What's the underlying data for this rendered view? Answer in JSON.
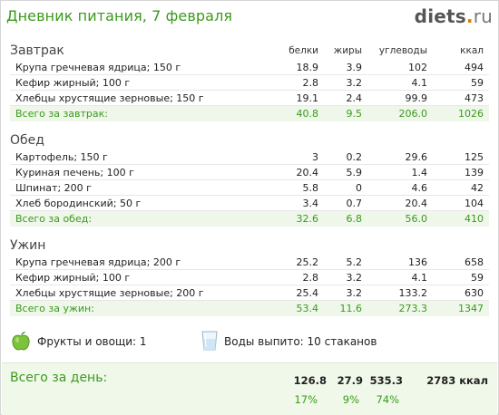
{
  "header": {
    "title": "Дневник питания, 7 февраля",
    "logo_name": "diets",
    "logo_dot": ".",
    "logo_tld": "ru"
  },
  "columns": [
    "белки",
    "жиры",
    "углеводы",
    "ккал"
  ],
  "meals": [
    {
      "name": "Завтрак",
      "items": [
        {
          "name": "Крупа гречневая ядрица; 150 г",
          "protein": "18.9",
          "fat": "3.9",
          "carbs": "102",
          "kcal": "494"
        },
        {
          "name": "Кефир жирный; 100 г",
          "protein": "2.8",
          "fat": "3.2",
          "carbs": "4.1",
          "kcal": "59"
        },
        {
          "name": "Хлебцы хрустящие зерновые; 150 г",
          "protein": "19.1",
          "fat": "2.4",
          "carbs": "99.9",
          "kcal": "473"
        }
      ],
      "total": {
        "label": "Всего за завтрак:",
        "protein": "40.8",
        "fat": "9.5",
        "carbs": "206.0",
        "kcal": "1026"
      }
    },
    {
      "name": "Обед",
      "items": [
        {
          "name": "Картофель; 150 г",
          "protein": "3",
          "fat": "0.2",
          "carbs": "29.6",
          "kcal": "125"
        },
        {
          "name": "Куриная печень; 100 г",
          "protein": "20.4",
          "fat": "5.9",
          "carbs": "1.4",
          "kcal": "139"
        },
        {
          "name": "Шпинат; 200 г",
          "protein": "5.8",
          "fat": "0",
          "carbs": "4.6",
          "kcal": "42"
        },
        {
          "name": "Хлеб бородинский; 50 г",
          "protein": "3.4",
          "fat": "0.7",
          "carbs": "20.4",
          "kcal": "104"
        }
      ],
      "total": {
        "label": "Всего за обед:",
        "protein": "32.6",
        "fat": "6.8",
        "carbs": "56.0",
        "kcal": "410"
      }
    },
    {
      "name": "Ужин",
      "items": [
        {
          "name": "Крупа гречневая ядрица; 200 г",
          "protein": "25.2",
          "fat": "5.2",
          "carbs": "136",
          "kcal": "658"
        },
        {
          "name": "Кефир жирный; 100 г",
          "protein": "2.8",
          "fat": "3.2",
          "carbs": "4.1",
          "kcal": "59"
        },
        {
          "name": "Хлебцы хрустящие зерновые; 200 г",
          "protein": "25.4",
          "fat": "3.2",
          "carbs": "133.2",
          "kcal": "630"
        }
      ],
      "total": {
        "label": "Всего за ужин:",
        "protein": "53.4",
        "fat": "11.6",
        "carbs": "273.3",
        "kcal": "1347"
      }
    }
  ],
  "extras": {
    "fruits_label": "Фрукты и овощи: 1",
    "water_label": "Воды выпито: 10 стаканов",
    "fruit_icon": "green-apple-icon",
    "water_icon": "water-glass-icon"
  },
  "day_total": {
    "label": "Всего за день:",
    "protein": "126.8",
    "fat": "27.9",
    "carbs": "535.3",
    "kcal": "2783 ккал",
    "protein_pct": "17%",
    "fat_pct": "9%",
    "carbs_pct": "74%"
  },
  "colors": {
    "accent_green": "#3c9a1c",
    "total_row_bg": "#eef7ea",
    "day_box_bg": "#f0f8ea",
    "logo_dot": "#e07b00"
  }
}
